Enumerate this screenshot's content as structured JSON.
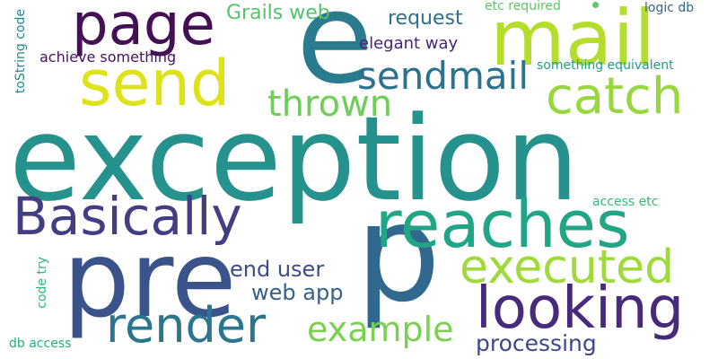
{
  "cloud": {
    "words": [
      {
        "text": "exception",
        "color": "#26928d"
      },
      {
        "text": "p",
        "color": "#31688e"
      },
      {
        "text": "e",
        "color": "#2b7b8e"
      },
      {
        "text": "pre",
        "color": "#3b538b"
      },
      {
        "text": "mail",
        "color": "#b5dd2b"
      },
      {
        "text": "send",
        "color": "#dde318"
      },
      {
        "text": "page",
        "color": "#440f54"
      },
      {
        "text": "reaches",
        "color": "#21a685"
      },
      {
        "text": "looking",
        "color": "#472a7a"
      },
      {
        "text": "Basically",
        "color": "#433d84"
      },
      {
        "text": "render",
        "color": "#2b758e"
      },
      {
        "text": "catch",
        "color": "#98d83e"
      },
      {
        "text": "executed",
        "color": "#9fda3a"
      },
      {
        "text": "sendmail",
        "color": "#2c718e"
      },
      {
        "text": "thrown",
        "color": "#6ece58"
      },
      {
        "text": "example",
        "color": "#7ad151"
      },
      {
        "text": "processing",
        "color": "#3f4788"
      },
      {
        "text": "Grails web",
        "color": "#52c569"
      },
      {
        "text": "request",
        "color": "#2d718e"
      },
      {
        "text": "end user",
        "color": "#3d4d8a"
      },
      {
        "text": "web app",
        "color": "#355f8d"
      },
      {
        "text": "elegant way",
        "color": "#482475"
      },
      {
        "text": "achieve something",
        "color": "#471164"
      },
      {
        "text": "something equivalent",
        "color": "#1f9f88"
      },
      {
        "text": "etc required",
        "color": "#5cc863"
      },
      {
        "text": "logic db",
        "color": "#32658e"
      },
      {
        "text": "access etc",
        "color": "#37b878"
      },
      {
        "text": "db access",
        "color": "#27ad81"
      },
      {
        "text": "code try",
        "color": "#31b57b"
      },
      {
        "text": "toString code",
        "color": "#23898e"
      }
    ]
  }
}
